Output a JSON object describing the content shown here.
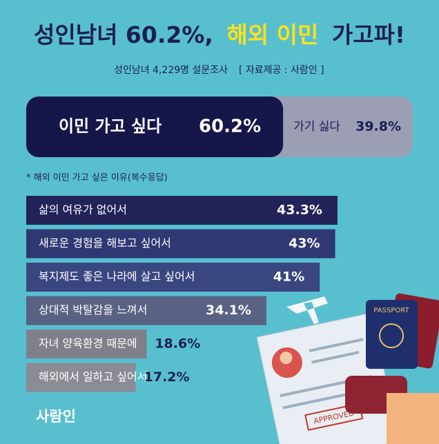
{
  "chart_data": {
    "type": "bar",
    "title_parts": [
      "성인남녀 60.2%,",
      "해외 이민",
      "가고파!"
    ],
    "subtitle": "성인남녀 4,229명 설문조사",
    "source": "[ 자료제공 : 사람인 ]",
    "split": {
      "categories": [
        "이민 가고 싶다",
        "가기 싫다"
      ],
      "values": [
        60.2,
        39.8
      ],
      "value_labels": [
        "60.2%",
        "39.8%"
      ],
      "colors": [
        "#15164a",
        "#9c9eb4"
      ]
    },
    "note": "* 해외 이민 가고 싶은 이유(복수응답)",
    "categories": [
      "삶의 여유가 없어서",
      "새로운 경험을 해보고 싶어서",
      "복지제도 좋은 나라에 살고 싶어서",
      "상대적 박탈감을 느껴서",
      "자녀 양육환경 때문에",
      "해외에서 일하고 싶어서"
    ],
    "values": [
      43.3,
      43,
      41,
      34.1,
      18.6,
      17.2
    ],
    "value_labels": [
      "43.3%",
      "43%",
      "41%",
      "34.1%",
      "18.6%",
      "17.2%"
    ],
    "colors": [
      "#222359",
      "#2f3872",
      "#3a4680",
      "#5a6283",
      "#7e808c",
      "#8a8c95"
    ],
    "logo": "사람인",
    "illustration": {
      "passport": "PASSPORT",
      "stamp": "APPROVED"
    }
  }
}
